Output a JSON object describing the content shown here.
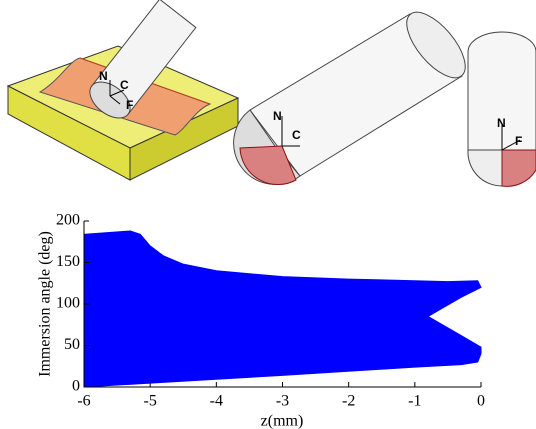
{
  "illustrations": [
    {
      "labels": [
        "N",
        "C",
        "F"
      ]
    },
    {
      "labels": [
        "N",
        "C"
      ]
    },
    {
      "labels": [
        "N",
        "F"
      ]
    }
  ],
  "chart_data": {
    "type": "area",
    "xlabel": "z(mm)",
    "ylabel": "Immersion angle (deg)",
    "x": [
      -6,
      -3,
      -1,
      -0.3,
      -0.05,
      0,
      0,
      -0.3,
      -0.8,
      -0.3,
      0,
      -0.05,
      -0.5,
      -1,
      -2,
      -3,
      -4,
      -4.5,
      -4.8,
      -5.0,
      -5.15,
      -5.3,
      -6
    ],
    "y": [
      0,
      14,
      24,
      27,
      30,
      40,
      48,
      62,
      85,
      108,
      120,
      128,
      127,
      128,
      130,
      133,
      140,
      148,
      158,
      170,
      184,
      188,
      184
    ],
    "color": "#0000ff",
    "xlim": [
      -6,
      0
    ],
    "xticks": [
      -6,
      -5,
      -4,
      -3,
      -2,
      -1,
      0
    ],
    "ylim": [
      0,
      200
    ],
    "yticks": [
      0,
      50,
      100,
      150,
      200
    ]
  }
}
